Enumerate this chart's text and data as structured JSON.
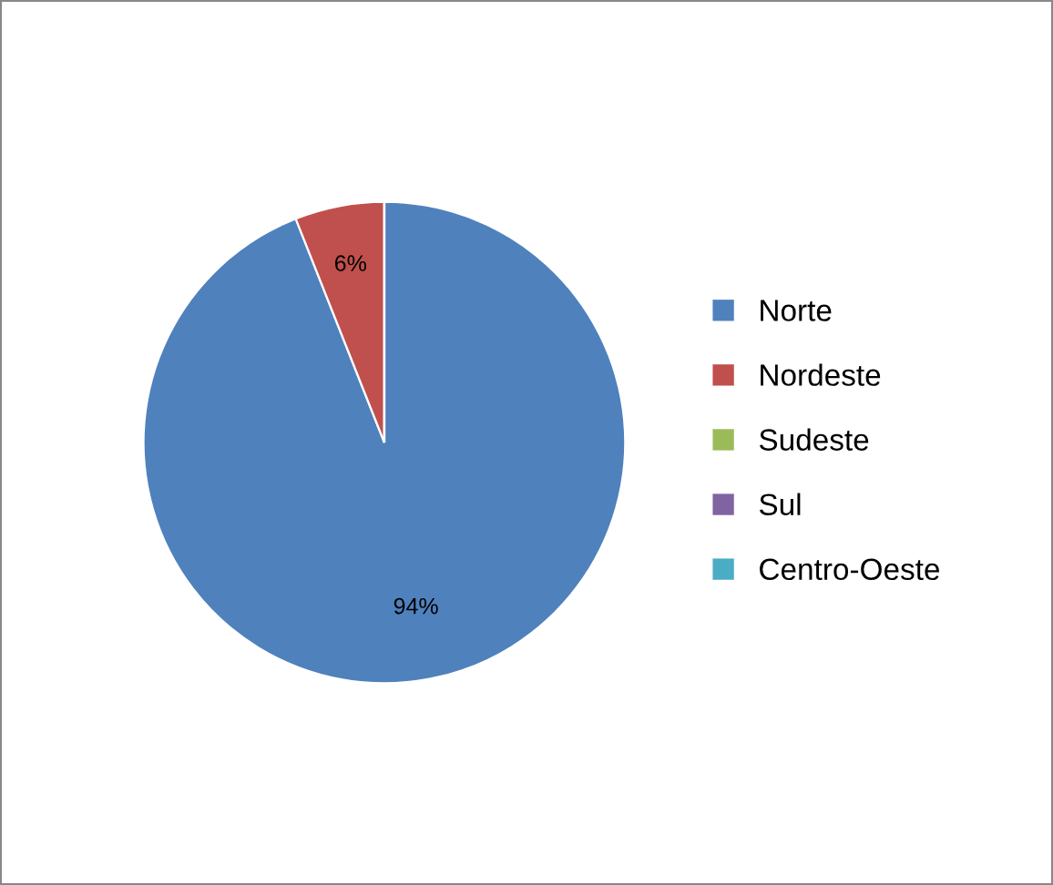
{
  "chart_data": {
    "type": "pie",
    "categories": [
      "Norte",
      "Nordeste",
      "Sudeste",
      "Sul",
      "Centro-Oeste"
    ],
    "values": [
      94,
      6,
      0,
      0,
      0
    ],
    "colors": [
      "#4f81bd",
      "#c0504d",
      "#9bbb59",
      "#8064a2",
      "#4bacc6"
    ],
    "value_labels": [
      "94%",
      "6%",
      null,
      null,
      null
    ],
    "legend": "right"
  }
}
